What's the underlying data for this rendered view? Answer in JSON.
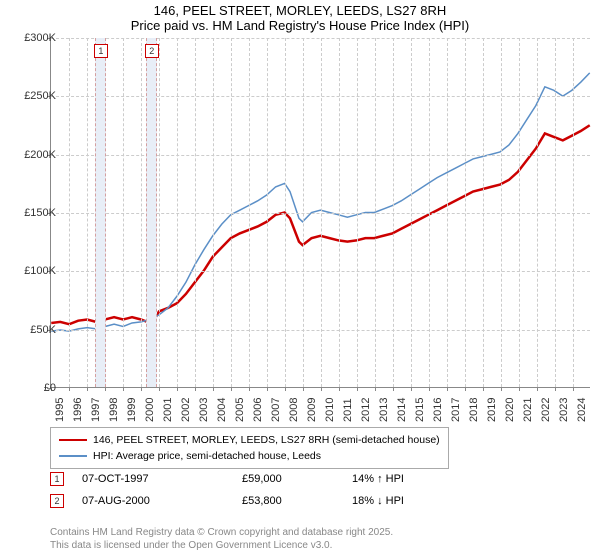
{
  "title": "146, PEEL STREET, MORLEY, LEEDS, LS27 8RH",
  "subtitle": "Price paid vs. HM Land Registry's House Price Index (HPI)",
  "chart": {
    "type": "line",
    "background_color": "#ffffff",
    "grid_color": "#cccccc",
    "axis_color": "#888888",
    "xlim": [
      1995,
      2025
    ],
    "ylim": [
      0,
      300000
    ],
    "ytick_step": 50000,
    "yticks": [
      "£0",
      "£50K",
      "£100K",
      "£150K",
      "£200K",
      "£250K",
      "£300K"
    ],
    "xticks": [
      1995,
      1996,
      1997,
      1998,
      1999,
      2000,
      2001,
      2002,
      2003,
      2004,
      2005,
      2006,
      2007,
      2008,
      2009,
      2010,
      2011,
      2012,
      2013,
      2014,
      2015,
      2016,
      2017,
      2018,
      2019,
      2020,
      2021,
      2022,
      2023,
      2024
    ],
    "label_fontsize": 11,
    "title_fontsize": 13,
    "line_width_red": 2.5,
    "line_width_blue": 1.5,
    "series": [
      {
        "name": "146, PEEL STREET, MORLEY, LEEDS, LS27 8RH (semi-detached house)",
        "color": "#cc0000",
        "width": 2.5,
        "points": [
          [
            1995,
            55000
          ],
          [
            1995.5,
            56000
          ],
          [
            1996,
            54000
          ],
          [
            1996.5,
            57000
          ],
          [
            1997,
            58000
          ],
          [
            1997.5,
            56000
          ],
          [
            1997.8,
            59000
          ],
          [
            1998,
            58000
          ],
          [
            1998.5,
            60000
          ],
          [
            1999,
            58000
          ],
          [
            1999.5,
            60000
          ],
          [
            2000,
            58000
          ],
          [
            2000.5,
            55000
          ],
          [
            2000.6,
            53800
          ],
          [
            2001,
            65000
          ],
          [
            2001.5,
            68000
          ],
          [
            2002,
            72000
          ],
          [
            2002.5,
            80000
          ],
          [
            2003,
            90000
          ],
          [
            2003.5,
            100000
          ],
          [
            2004,
            112000
          ],
          [
            2004.5,
            120000
          ],
          [
            2005,
            128000
          ],
          [
            2005.5,
            132000
          ],
          [
            2006,
            135000
          ],
          [
            2006.5,
            138000
          ],
          [
            2007,
            142000
          ],
          [
            2007.5,
            148000
          ],
          [
            2008,
            150000
          ],
          [
            2008.3,
            145000
          ],
          [
            2008.8,
            125000
          ],
          [
            2009,
            122000
          ],
          [
            2009.5,
            128000
          ],
          [
            2010,
            130000
          ],
          [
            2010.5,
            128000
          ],
          [
            2011,
            126000
          ],
          [
            2011.5,
            125000
          ],
          [
            2012,
            126000
          ],
          [
            2012.5,
            128000
          ],
          [
            2013,
            128000
          ],
          [
            2013.5,
            130000
          ],
          [
            2014,
            132000
          ],
          [
            2014.5,
            136000
          ],
          [
            2015,
            140000
          ],
          [
            2015.5,
            144000
          ],
          [
            2016,
            148000
          ],
          [
            2016.5,
            152000
          ],
          [
            2017,
            156000
          ],
          [
            2017.5,
            160000
          ],
          [
            2018,
            164000
          ],
          [
            2018.5,
            168000
          ],
          [
            2019,
            170000
          ],
          [
            2019.5,
            172000
          ],
          [
            2020,
            174000
          ],
          [
            2020.5,
            178000
          ],
          [
            2021,
            185000
          ],
          [
            2021.5,
            195000
          ],
          [
            2022,
            205000
          ],
          [
            2022.5,
            218000
          ],
          [
            2023,
            215000
          ],
          [
            2023.5,
            212000
          ],
          [
            2024,
            216000
          ],
          [
            2024.5,
            220000
          ],
          [
            2025,
            225000
          ]
        ]
      },
      {
        "name": "HPI: Average price, semi-detached house, Leeds",
        "color": "#5b8fc7",
        "width": 1.5,
        "points": [
          [
            1995,
            48000
          ],
          [
            1995.5,
            49000
          ],
          [
            1996,
            48000
          ],
          [
            1996.5,
            50000
          ],
          [
            1997,
            51000
          ],
          [
            1997.5,
            50000
          ],
          [
            1998,
            52000
          ],
          [
            1998.5,
            54000
          ],
          [
            1999,
            52000
          ],
          [
            1999.5,
            55000
          ],
          [
            2000,
            56000
          ],
          [
            2000.5,
            58000
          ],
          [
            2001,
            62000
          ],
          [
            2001.5,
            68000
          ],
          [
            2002,
            78000
          ],
          [
            2002.5,
            90000
          ],
          [
            2003,
            105000
          ],
          [
            2003.5,
            118000
          ],
          [
            2004,
            130000
          ],
          [
            2004.5,
            140000
          ],
          [
            2005,
            148000
          ],
          [
            2005.5,
            152000
          ],
          [
            2006,
            156000
          ],
          [
            2006.5,
            160000
          ],
          [
            2007,
            165000
          ],
          [
            2007.5,
            172000
          ],
          [
            2008,
            175000
          ],
          [
            2008.3,
            168000
          ],
          [
            2008.8,
            145000
          ],
          [
            2009,
            142000
          ],
          [
            2009.5,
            150000
          ],
          [
            2010,
            152000
          ],
          [
            2010.5,
            150000
          ],
          [
            2011,
            148000
          ],
          [
            2011.5,
            146000
          ],
          [
            2012,
            148000
          ],
          [
            2012.5,
            150000
          ],
          [
            2013,
            150000
          ],
          [
            2013.5,
            153000
          ],
          [
            2014,
            156000
          ],
          [
            2014.5,
            160000
          ],
          [
            2015,
            165000
          ],
          [
            2015.5,
            170000
          ],
          [
            2016,
            175000
          ],
          [
            2016.5,
            180000
          ],
          [
            2017,
            184000
          ],
          [
            2017.5,
            188000
          ],
          [
            2018,
            192000
          ],
          [
            2018.5,
            196000
          ],
          [
            2019,
            198000
          ],
          [
            2019.5,
            200000
          ],
          [
            2020,
            202000
          ],
          [
            2020.5,
            208000
          ],
          [
            2021,
            218000
          ],
          [
            2021.5,
            230000
          ],
          [
            2022,
            242000
          ],
          [
            2022.5,
            258000
          ],
          [
            2023,
            255000
          ],
          [
            2023.5,
            250000
          ],
          [
            2024,
            255000
          ],
          [
            2024.5,
            262000
          ],
          [
            2025,
            270000
          ]
        ]
      }
    ],
    "sale_markers": [
      {
        "num": "1",
        "x": 1997.77,
        "y": 59000,
        "band_width_years": 0.6
      },
      {
        "num": "2",
        "x": 2000.6,
        "y": 53800,
        "band_width_years": 0.6
      }
    ]
  },
  "legend": {
    "items": [
      {
        "color": "#cc0000",
        "width": 2.5,
        "label": "146, PEEL STREET, MORLEY, LEEDS, LS27 8RH (semi-detached house)"
      },
      {
        "color": "#5b8fc7",
        "width": 1.5,
        "label": "HPI: Average price, semi-detached house, Leeds"
      }
    ]
  },
  "sales": [
    {
      "num": "1",
      "date": "07-OCT-1997",
      "price": "£59,000",
      "pct": "14% ↑ HPI"
    },
    {
      "num": "2",
      "date": "07-AUG-2000",
      "price": "£53,800",
      "pct": "18% ↓ HPI"
    }
  ],
  "footer": {
    "line1": "Contains HM Land Registry data © Crown copyright and database right 2025.",
    "line2": "This data is licensed under the Open Government Licence v3.0."
  }
}
